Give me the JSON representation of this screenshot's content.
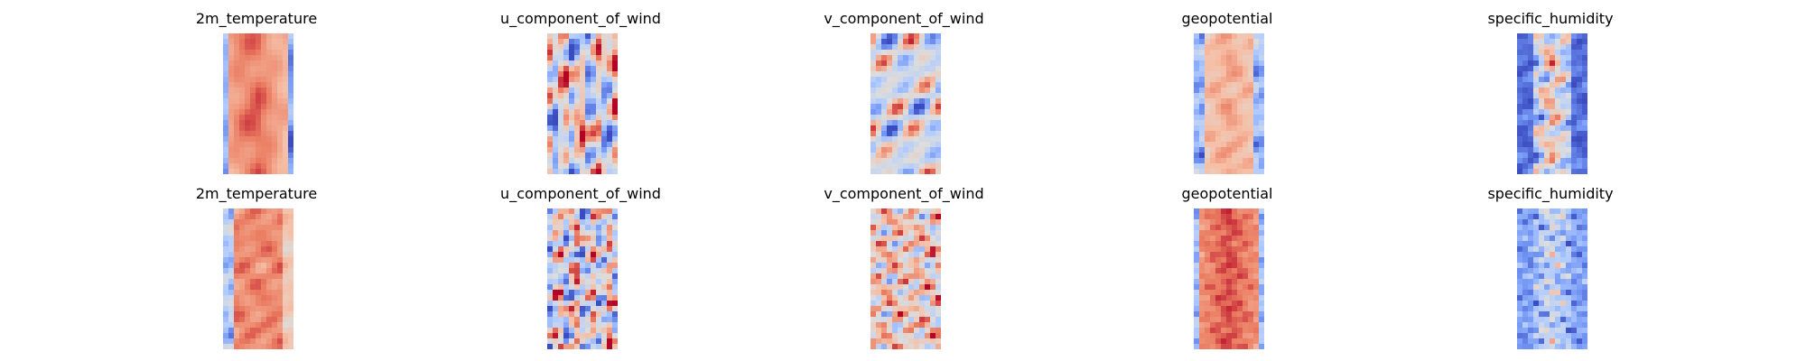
{
  "rows": [
    {
      "panels": [
        {
          "title": "2m_temperature",
          "pattern": "warm-band"
        },
        {
          "title": "u_component_of_wind",
          "pattern": "neutral-streaks"
        },
        {
          "title": "v_component_of_wind",
          "pattern": "neutral-blobs"
        },
        {
          "title": "geopotential",
          "pattern": "warm-band-light"
        },
        {
          "title": "specific_humidity",
          "pattern": "cold-sides-hot-core"
        }
      ]
    },
    {
      "panels": [
        {
          "title": "2m_temperature",
          "pattern": "warm-wide"
        },
        {
          "title": "u_component_of_wind",
          "pattern": "neutral-streaks"
        },
        {
          "title": "v_component_of_wind",
          "pattern": "warm-blobs"
        },
        {
          "title": "geopotential",
          "pattern": "hot-core"
        },
        {
          "title": "specific_humidity",
          "pattern": "cool-sides"
        }
      ]
    }
  ],
  "colormap": [
    "#3b4cc0",
    "#7396f5",
    "#b0cbff",
    "#dcdddd",
    "#f6bfa6",
    "#ea7b60",
    "#b40426"
  ]
}
